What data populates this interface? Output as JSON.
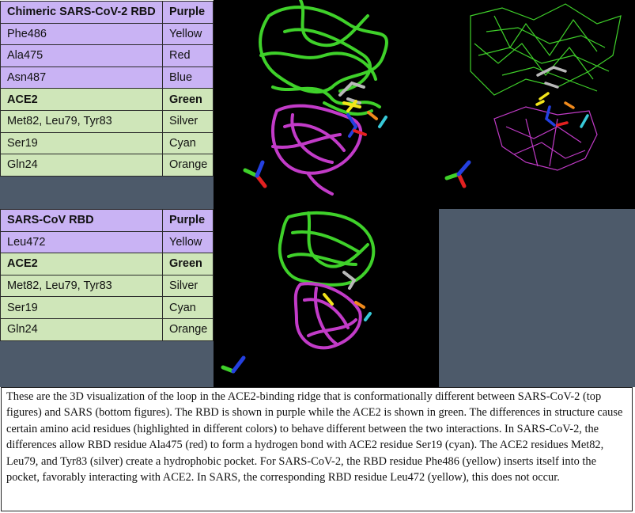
{
  "top_table": {
    "rows": [
      {
        "name": "Chimeric SARS-CoV-2 RBD",
        "color": "Purple",
        "style": "header-purple"
      },
      {
        "name": "Phe486",
        "color": "Yellow",
        "style": "purple"
      },
      {
        "name": "Ala475",
        "color": "Red",
        "style": "purple"
      },
      {
        "name": "Asn487",
        "color": "Blue",
        "style": "purple"
      },
      {
        "name": "ACE2",
        "color": "Green",
        "style": "header-green"
      },
      {
        "name": "Met82, Leu79, Tyr83",
        "color": "Silver",
        "style": "green"
      },
      {
        "name": "Ser19",
        "color": "Cyan",
        "style": "green"
      },
      {
        "name": "Gln24",
        "color": "Orange",
        "style": "green"
      }
    ]
  },
  "bottom_table": {
    "rows": [
      {
        "name": "SARS-CoV RBD",
        "color": "Purple",
        "style": "header-purple"
      },
      {
        "name": "Leu472",
        "color": "Yellow",
        "style": "purple"
      },
      {
        "name": "ACE2",
        "color": "Green",
        "style": "header-green"
      },
      {
        "name": "Met82, Leu79, Tyr83",
        "color": "Silver",
        "style": "green"
      },
      {
        "name": "Ser19",
        "color": "Cyan",
        "style": "green"
      },
      {
        "name": "Gln24",
        "color": "Orange",
        "style": "green"
      }
    ]
  },
  "colors": {
    "rbd": "#c23bc8",
    "ace2": "#3fd12a",
    "phe_leu": "#f2e51a",
    "ala": "#e32020",
    "asn": "#2440e0",
    "silver": "#b9b9b9",
    "cyan": "#38c9d8",
    "orange": "#f08a1c",
    "table_purple": "#c9b3f4",
    "table_green": "#cfe6b9",
    "background_gray": "#4d5a6a"
  },
  "caption": "These are the 3D visualization of the loop in the ACE2-binding ridge that is conformationally different between SARS-CoV-2 (top figures) and SARS (bottom figures). The RBD is shown in purple while the ACE2 is shown in green. The differences in structure cause certain amino acid residues (highlighted in different colors) to behave different between the two interactions. In SARS-CoV-2, the differences allow RBD residue Ala475 (red) to form a hydrogen bond with ACE2 residue Ser19 (cyan). The ACE2 residues Met82, Leu79, and Tyr83 (silver) create a hydrophobic pocket. For SARS-CoV-2, the RBD residue Phe486 (yellow) inserts itself into the pocket, favorably interacting with ACE2. In SARS, the corresponding RBD residue Leu472 (yellow), this does not occur."
}
